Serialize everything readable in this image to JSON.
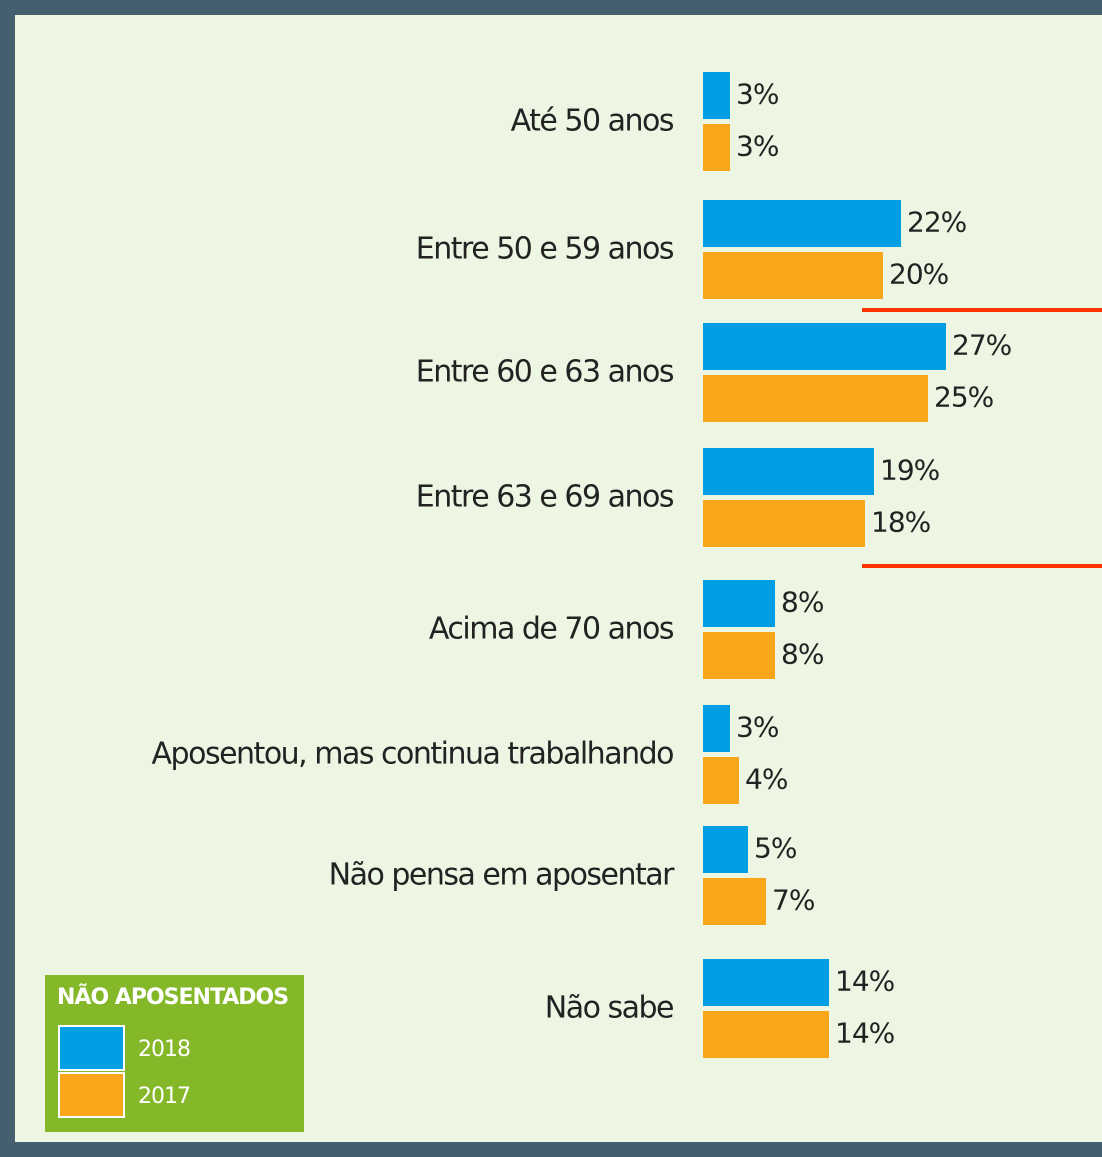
{
  "chart_data": {
    "type": "bar",
    "orientation": "horizontal",
    "categories": [
      "Até 50 anos",
      "Entre 50 e 59 anos",
      "Entre 60 e 63 anos",
      "Entre 63 e 69 anos",
      "Acima de 70 anos",
      "Aposentou, mas continua trabalhando",
      "Não pensa em aposentar",
      "Não sabe"
    ],
    "series": [
      {
        "name": "2018",
        "color": "#009fe3",
        "values": [
          3,
          22,
          27,
          19,
          8,
          3,
          5,
          14
        ],
        "value_labels": [
          "3%",
          "22%",
          "27%",
          "19%",
          "8%",
          "3%",
          "5%",
          "14%"
        ]
      },
      {
        "name": "2017",
        "color": "#f9a61a",
        "values": [
          3,
          20,
          25,
          18,
          8,
          4,
          7,
          14
        ],
        "value_labels": [
          "3%",
          "20%",
          "25%",
          "18%",
          "8%",
          "4%",
          "7%",
          "14%"
        ]
      }
    ],
    "xlim": [
      0,
      33
    ],
    "legend_title": "NÃO APOSENTADOS",
    "legend": "bottom-left"
  }
}
